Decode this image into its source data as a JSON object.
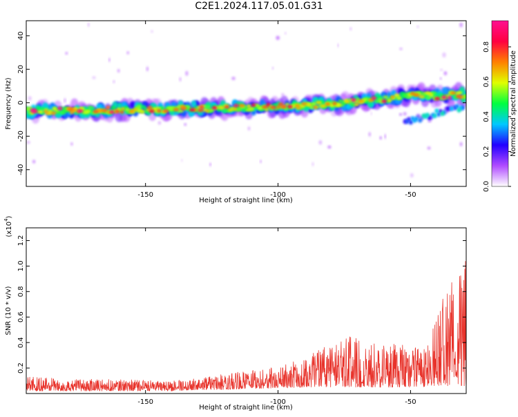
{
  "title": "C2E1.2024.117.05.01.G31",
  "colors": {
    "snr_line": "#e8332b",
    "axes": "#000000"
  },
  "chart_data": [
    {
      "type": "heatmap",
      "title": "C2E1.2024.117.05.01.G31",
      "xlabel": "Height of straight line (km)",
      "ylabel": "Frequency (Hz)",
      "xlim": [
        -195,
        -29
      ],
      "ylim": [
        -50,
        49
      ],
      "xticks": [
        -150,
        -100,
        -50
      ],
      "yticks": [
        -40,
        -20,
        0,
        20,
        40
      ],
      "xtick_labels": [
        "-150",
        "-100",
        "-50"
      ],
      "ytick_labels": [
        "-40",
        "-20",
        "0",
        "20",
        "40"
      ],
      "ridge": {
        "x": [
          -195,
          -150,
          -110,
          -80,
          -60,
          -50,
          -40,
          -29
        ],
        "frequency_hz": [
          -5,
          -4,
          -3,
          -1,
          2,
          5,
          4,
          5
        ]
      },
      "branch": {
        "x": [
          -52,
          -45,
          -40,
          -35,
          -30
        ],
        "frequency_hz": [
          -11,
          -9,
          -6,
          -4,
          -3
        ]
      },
      "colorbar": {
        "label": "Normalized spectral amplitude",
        "range": [
          0.0,
          0.95
        ],
        "ticks": [
          0.0,
          0.2,
          0.4,
          0.6,
          0.8
        ],
        "tick_labels": [
          "0.0",
          "0.2",
          "0.4",
          "0.6",
          "0.8"
        ],
        "colormap": [
          "#ffffff",
          "#b04bff",
          "#2200ff",
          "#00c8ff",
          "#00ff40",
          "#e0ff00",
          "#ff8000",
          "#ff0040",
          "#ff1090"
        ]
      }
    },
    {
      "type": "line",
      "xlabel": "Height of straight line (km)",
      "ylabel": "SNR (10 * v/v)",
      "y_multiplier_base": "(x10",
      "y_multiplier_exp": "4",
      "y_multiplier_close": ")",
      "xlim": [
        -195,
        -29
      ],
      "ylim": [
        0,
        1.3
      ],
      "xticks": [
        -150,
        -100,
        -50
      ],
      "yticks": [
        0.2,
        0.4,
        0.6,
        0.8,
        1.0,
        1.2
      ],
      "xtick_labels": [
        "-150",
        "-100",
        "-50"
      ],
      "ytick_labels": [
        "0.2",
        "0.4",
        "0.6",
        "0.8",
        "1.0",
        "1.2"
      ],
      "series": [
        {
          "envelope_x": [
            -195,
            -180,
            -160,
            -140,
            -130,
            -120,
            -110,
            -100,
            -90,
            -85,
            -80,
            -72,
            -70,
            -60,
            -55,
            -50,
            -45,
            -42,
            -40,
            -38,
            -35,
            -33,
            -31,
            -29
          ],
          "envelope_y": [
            0.13,
            0.12,
            0.11,
            0.1,
            0.12,
            0.16,
            0.18,
            0.22,
            0.28,
            0.35,
            0.38,
            0.48,
            0.42,
            0.38,
            0.4,
            0.35,
            0.4,
            0.5,
            0.65,
            0.75,
            0.9,
            1.05,
            1.2,
            1.25
          ],
          "floor_y": [
            0.02,
            0.02,
            0.02,
            0.02,
            0.03,
            0.03,
            0.04,
            0.04,
            0.05,
            0.05,
            0.05,
            0.05,
            0.05,
            0.05,
            0.05,
            0.05,
            0.05,
            0.06,
            0.06,
            0.06,
            0.06,
            0.06,
            0.06,
            0.06
          ]
        }
      ]
    }
  ]
}
